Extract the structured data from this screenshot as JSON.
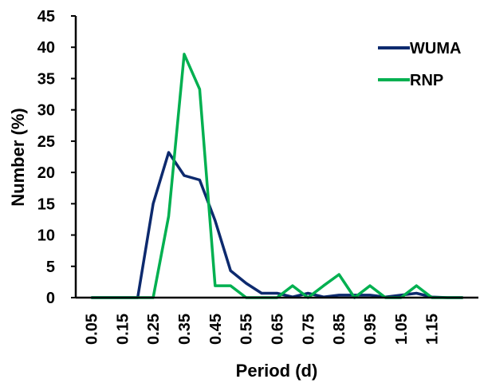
{
  "chart_data": {
    "type": "line",
    "xlabel": "Period (d)",
    "ylabel": "Number (%)",
    "ylim": [
      0,
      45
    ],
    "yticks": [
      "0",
      "5",
      "10",
      "15",
      "20",
      "25",
      "30",
      "35",
      "40",
      "45"
    ],
    "xticks": [
      "0.05",
      "0.15",
      "0.25",
      "0.35",
      "0.45",
      "0.55",
      "0.65",
      "0.75",
      "0.85",
      "0.95",
      "1.05",
      "1.15"
    ],
    "x": [
      0.05,
      0.1,
      0.15,
      0.2,
      0.25,
      0.3,
      0.35,
      0.4,
      0.45,
      0.5,
      0.55,
      0.6,
      0.65,
      0.7,
      0.75,
      0.8,
      0.85,
      0.9,
      0.95,
      1.0,
      1.05,
      1.1,
      1.15,
      1.2,
      1.25
    ],
    "grid": false,
    "legend_position": "top-right",
    "series": [
      {
        "name": "WUMA",
        "color": "#0d2a6e",
        "values": [
          0,
          0,
          0,
          0,
          15.0,
          23.2,
          19.5,
          18.8,
          12.3,
          4.3,
          2.3,
          0.7,
          0.7,
          0.1,
          0.7,
          0.1,
          0.4,
          0.4,
          0.4,
          0.1,
          0.4,
          0.7,
          0.1,
          0,
          0
        ]
      },
      {
        "name": "RNP",
        "color": "#00b050",
        "values": [
          0,
          0,
          0,
          0,
          0,
          13.0,
          38.9,
          33.3,
          1.9,
          1.9,
          0,
          0,
          0,
          1.9,
          0,
          1.9,
          3.7,
          0,
          1.9,
          0,
          0,
          1.9,
          0,
          0,
          0
        ]
      }
    ]
  }
}
